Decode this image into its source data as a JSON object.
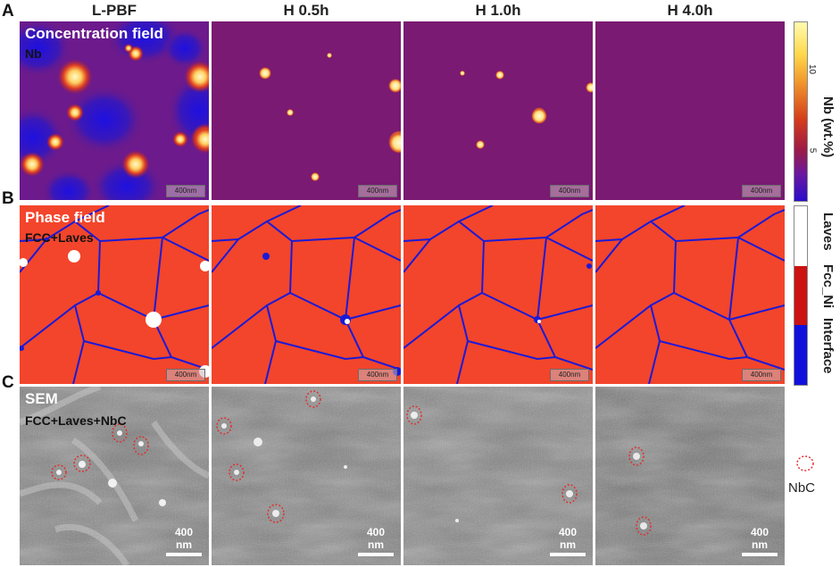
{
  "columns": [
    "L-PBF",
    "H 0.5h",
    "H 1.0h",
    "H 4.0h"
  ],
  "rows": {
    "a": {
      "letter": "A",
      "title": "Concentration field",
      "subtitle": "Nb",
      "scalebar": "400nm"
    },
    "b": {
      "letter": "B",
      "title": "Phase field",
      "subtitle": "FCC+Laves",
      "scalebar": "400nm"
    },
    "c": {
      "letter": "C",
      "title": "SEM",
      "subtitle": "FCC+Laves+NbC",
      "scalebar": "400 nm"
    }
  },
  "colorbar_nb": {
    "label": "Nb (wt.%)",
    "ticks": [
      "10",
      "5"
    ],
    "colors": [
      "#fffbb0",
      "#f4a020",
      "#d8301a",
      "#8a1a55",
      "#2a0ccc"
    ]
  },
  "colorbar_phase": {
    "labels": [
      "Laves",
      "Fcc_Ni",
      "Interface"
    ],
    "colors": [
      "#ffffff",
      "#cc1212",
      "#1010dd"
    ]
  },
  "legend": {
    "label": "NbC",
    "marker_color": "#e03030"
  },
  "colors": {
    "phase_fcc": "#f2452b",
    "phase_boundary": "#1a1ad8",
    "concentration_bg": "#7a1a70"
  }
}
